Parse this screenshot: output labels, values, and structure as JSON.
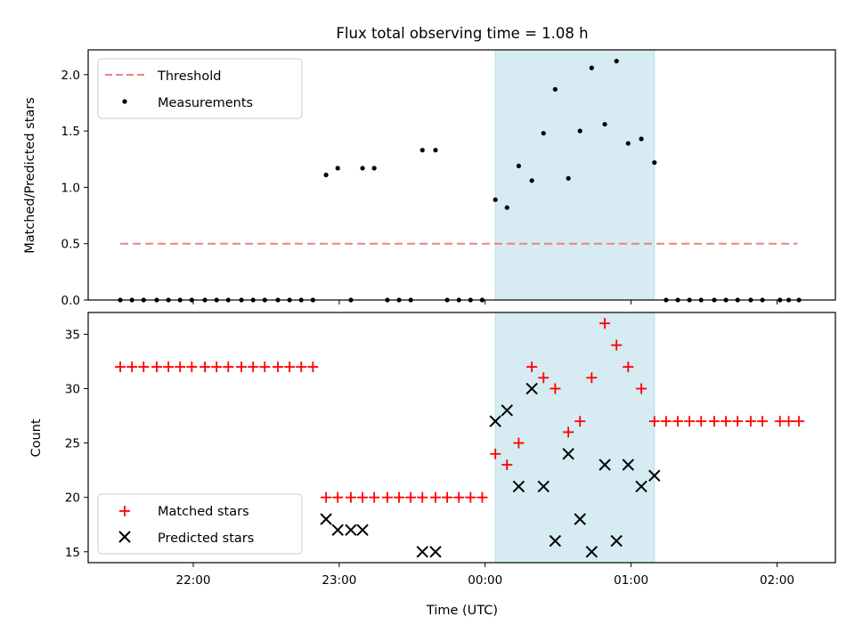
{
  "title": "Flux total observing time = 1.08 h",
  "colors": {
    "threshold": "#f08080",
    "measurements": "#000000",
    "matched": "#ff0000",
    "predicted": "#000000",
    "span_fill": "#add8e6"
  },
  "x_axis": {
    "label": "Time (UTC)",
    "ticks": [
      {
        "value": 22.0,
        "label": "22:00"
      },
      {
        "value": 23.0,
        "label": "23:00"
      },
      {
        "value": 24.0,
        "label": "00:00"
      },
      {
        "value": 25.0,
        "label": "01:00"
      },
      {
        "value": 26.0,
        "label": "02:00"
      }
    ]
  },
  "chart_data": [
    {
      "type": "scatter",
      "title": "Flux total observing time = 1.08 h",
      "xlabel": "",
      "ylabel": "Matched/Predicted stars",
      "xlim": [
        21.28,
        26.4
      ],
      "ylim": [
        0,
        2.22
      ],
      "yticks": [
        0.0,
        0.5,
        1.0,
        1.5,
        2.0
      ],
      "ytick_labels": [
        "0.0",
        "0.5",
        "1.0",
        "1.5",
        "2.0"
      ],
      "highlight_span": [
        24.07,
        25.16
      ],
      "legend_location": "upper left",
      "legend": [
        "Threshold",
        "Measurements"
      ],
      "threshold": {
        "name": "Threshold",
        "y": 0.5,
        "x_range": [
          21.5,
          26.14
        ]
      },
      "series": [
        {
          "name": "Measurements",
          "x": [
            21.5,
            21.58,
            21.66,
            21.75,
            21.83,
            21.91,
            21.99,
            22.08,
            22.16,
            22.24,
            22.33,
            22.41,
            22.49,
            22.58,
            22.66,
            22.74,
            22.82,
            22.91,
            22.99,
            23.08,
            23.16,
            23.24,
            23.33,
            23.41,
            23.49,
            23.57,
            23.66,
            23.74,
            23.82,
            23.9,
            23.98,
            24.07,
            24.15,
            24.23,
            24.32,
            24.4,
            24.48,
            24.57,
            24.65,
            24.73,
            24.82,
            24.9,
            24.98,
            25.07,
            25.16,
            25.24,
            25.32,
            25.4,
            25.48,
            25.57,
            25.65,
            25.73,
            25.82,
            25.9,
            26.02,
            26.08,
            26.15
          ],
          "y": [
            0,
            0,
            0,
            0,
            0,
            0,
            0,
            0,
            0,
            0,
            0,
            0,
            0,
            0,
            0,
            0,
            0,
            1.11,
            1.17,
            0,
            1.17,
            1.17,
            0,
            0,
            0,
            1.33,
            1.33,
            0,
            0,
            0,
            0,
            0.89,
            0.82,
            1.19,
            1.06,
            1.48,
            1.87,
            1.08,
            1.5,
            2.06,
            1.56,
            2.12,
            1.39,
            1.43,
            1.22,
            0,
            0,
            0,
            0,
            0,
            0,
            0,
            0,
            0,
            0,
            0,
            0
          ]
        }
      ]
    },
    {
      "type": "scatter",
      "title": "",
      "xlabel": "Time (UTC)",
      "ylabel": "Count",
      "xlim": [
        21.28,
        26.4
      ],
      "ylim": [
        14,
        37
      ],
      "yticks": [
        15,
        20,
        25,
        30,
        35
      ],
      "ytick_labels": [
        "15",
        "20",
        "25",
        "30",
        "35"
      ],
      "highlight_span": [
        24.07,
        25.16
      ],
      "legend_location": "lower left",
      "legend": [
        "Matched stars",
        "Predicted stars"
      ],
      "series": [
        {
          "name": "Matched stars",
          "x": [
            21.5,
            21.58,
            21.66,
            21.75,
            21.83,
            21.91,
            21.99,
            22.08,
            22.16,
            22.24,
            22.33,
            22.41,
            22.49,
            22.58,
            22.66,
            22.74,
            22.82,
            22.91,
            22.99,
            23.08,
            23.16,
            23.24,
            23.33,
            23.41,
            23.49,
            23.57,
            23.66,
            23.74,
            23.82,
            23.9,
            23.98,
            24.07,
            24.15,
            24.23,
            24.32,
            24.4,
            24.48,
            24.57,
            24.65,
            24.73,
            24.82,
            24.9,
            24.98,
            25.07,
            25.16,
            25.24,
            25.32,
            25.4,
            25.48,
            25.57,
            25.65,
            25.73,
            25.82,
            25.9,
            26.02,
            26.08,
            26.15
          ],
          "y": [
            32,
            32,
            32,
            32,
            32,
            32,
            32,
            32,
            32,
            32,
            32,
            32,
            32,
            32,
            32,
            32,
            32,
            20,
            20,
            20,
            20,
            20,
            20,
            20,
            20,
            20,
            20,
            20,
            20,
            20,
            20,
            24,
            23,
            25,
            32,
            31,
            30,
            26,
            27,
            31,
            36,
            34,
            32,
            30,
            27,
            27,
            27,
            27,
            27,
            27,
            27,
            27,
            27,
            27,
            27,
            27,
            27
          ]
        },
        {
          "name": "Predicted stars",
          "x": [
            22.91,
            22.99,
            23.08,
            23.16,
            23.57,
            23.66,
            24.07,
            24.15,
            24.23,
            24.32,
            24.4,
            24.48,
            24.57,
            24.65,
            24.73,
            24.82,
            24.9,
            24.98,
            25.07,
            25.16
          ],
          "y": [
            18,
            17,
            17,
            17,
            15,
            15,
            27,
            28,
            21,
            30,
            21,
            16,
            24,
            18,
            15,
            23,
            16,
            23,
            21,
            22
          ]
        }
      ]
    }
  ]
}
